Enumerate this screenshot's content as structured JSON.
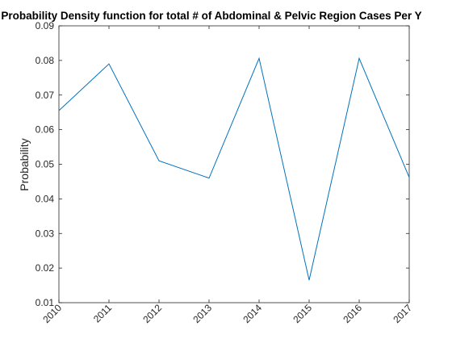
{
  "chart_data": {
    "type": "line",
    "title": "Probability Density function for total # of Abdominal & Pelvic Region Cases Per Y",
    "xlabel": "",
    "ylabel": "Probability",
    "x": [
      2010,
      2011,
      2012,
      2013,
      2014,
      2015,
      2016,
      2017
    ],
    "xticks": [
      "2010",
      "2011",
      "2012",
      "2013",
      "2014",
      "2015",
      "2016",
      "2017"
    ],
    "yticks": [
      "0.01",
      "0.02",
      "0.03",
      "0.04",
      "0.05",
      "0.06",
      "0.07",
      "0.08",
      "0.09"
    ],
    "xlim": [
      2010,
      2017
    ],
    "ylim": [
      0.01,
      0.09
    ],
    "grid": false,
    "series": [
      {
        "values": [
          0.0655,
          0.079,
          0.051,
          0.046,
          0.0806,
          0.0165,
          0.0806,
          0.0462
        ],
        "color": "#0072BD"
      }
    ]
  }
}
